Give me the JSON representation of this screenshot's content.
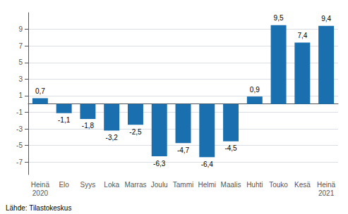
{
  "chart_data": {
    "type": "bar",
    "categories": [
      "Heinä\n2020",
      "Elo",
      "Syys",
      "Loka",
      "Marras",
      "Joulu",
      "Tammi",
      "Helmi",
      "Maalis",
      "Huhti",
      "Touko",
      "Kesä",
      "Heinä\n2021"
    ],
    "values": [
      0.7,
      -1.1,
      -1.8,
      -3.2,
      -2.5,
      -6.3,
      -4.7,
      -6.4,
      -4.5,
      0.9,
      9.5,
      7.4,
      9.4
    ],
    "value_labels": [
      "0,7",
      "-1,1",
      "-1,8",
      "-3,2",
      "-2,5",
      "-6,3",
      "-4,7",
      "-6,4",
      "-4,5",
      "0,9",
      "9,5",
      "7,4",
      "9,4"
    ],
    "data_labels": true,
    "color": "#1a6faf",
    "ylim": [
      -8.5,
      11.0
    ],
    "yticks": [
      -7,
      -5,
      -3,
      -1,
      1,
      3,
      5,
      7,
      9
    ],
    "grid": true,
    "annotations": [
      "Lähde: Tilastokeskus"
    ]
  }
}
